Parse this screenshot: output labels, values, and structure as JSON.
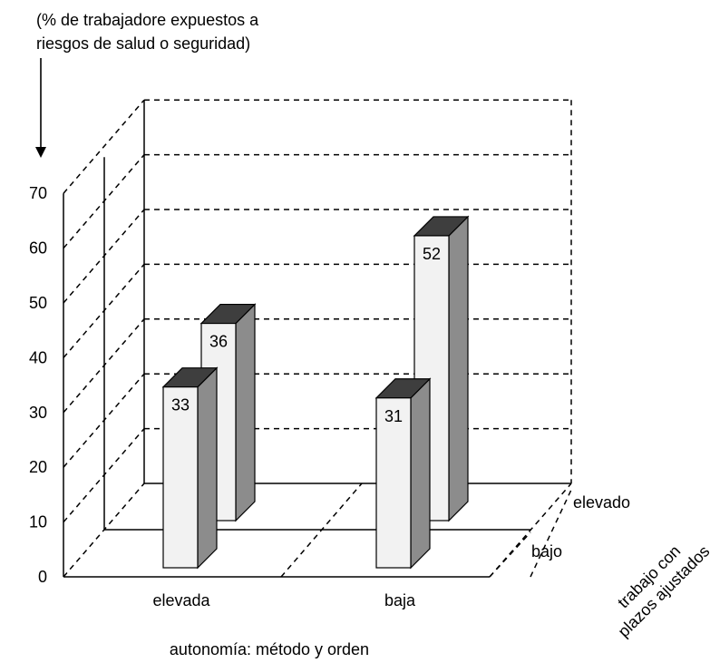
{
  "chart_data": {
    "type": "bar",
    "ylabel": "(% de trabajadore expuestos a riesgos de salud o seguridad)",
    "ylabel_lines": [
      "(% de trabajadore expuestos a",
      "riesgos de salud o seguridad)"
    ],
    "xlabel": "autonomía: método y orden",
    "zlabel": "trabajo con plazos ajustados",
    "zlabel_lines": [
      "trabajo con",
      "plazos ajustados"
    ],
    "categories": [
      "elevada",
      "baja"
    ],
    "depth_categories": [
      "bajo",
      "elevado"
    ],
    "series": [
      {
        "name": "bajo",
        "values": [
          33,
          31
        ]
      },
      {
        "name": "elevado",
        "values": [
          36,
          52
        ]
      }
    ],
    "yticks": [
      0,
      10,
      20,
      30,
      40,
      50,
      60,
      70
    ],
    "ylim": [
      0,
      70
    ],
    "grid": true,
    "colors": {
      "bar_front": "#f2f2f2",
      "bar_side": "#8c8c8c",
      "bar_top": "#3e3e3e",
      "frame": "#000000"
    }
  }
}
